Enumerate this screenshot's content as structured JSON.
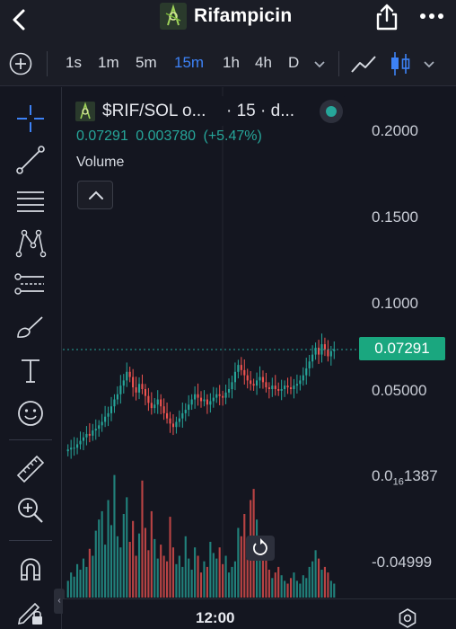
{
  "header": {
    "title": "Rifampicin",
    "back_icon": "chevron-left-icon",
    "share_icon": "share-icon",
    "more_icon": "more-dots-icon"
  },
  "toolbar": {
    "add_icon": "plus-circle-icon",
    "intervals": [
      "1s",
      "1m",
      "5m",
      "15m",
      "1h",
      "4h",
      "D"
    ],
    "active_interval": "15m",
    "line_chart_icon": "line-chart-icon",
    "candle_icon": "candlestick-icon",
    "dropdown_icon": "chevron-down-icon"
  },
  "sidebar": {
    "tools": [
      "crosshair-icon",
      "trend-line-icon",
      "horizontal-lines-icon",
      "pattern-icon",
      "parallel-channel-icon",
      "brush-icon",
      "text-icon",
      "emoji-icon",
      "ruler-icon",
      "zoom-in-icon",
      "magnet-icon",
      "lock-drawing-icon"
    ],
    "collapse_label": "‹"
  },
  "legend": {
    "symbol": "$RIF/SOL o...",
    "interval": "· 15 · d...",
    "price": "0.07291",
    "change": "0.003780",
    "change_pct": "(+5.47%)",
    "volume_label": "Volume"
  },
  "price_scale": {
    "labels": [
      "0.2000",
      "0.1500",
      "0.1000",
      "0.05000",
      "0.0",
      "16",
      "1387",
      "-0.04999"
    ],
    "current_price": "0.07291"
  },
  "time_axis": {
    "label": "12:00"
  },
  "colors": {
    "up": "#26a69a",
    "down": "#ef5350",
    "accent": "#3d82f6",
    "price_tag": "#1aa77f",
    "background": "#141620"
  },
  "chart_data": {
    "type": "candlestick",
    "title": "",
    "ylabel": "",
    "ylim": [
      -0.06,
      0.2
    ],
    "current_price": 0.07291,
    "series": [
      {
        "name": "price",
        "close": [
          0.015,
          0.016,
          0.016,
          0.018,
          0.02,
          0.022,
          0.024,
          0.023,
          0.026,
          0.027,
          0.029,
          0.031,
          0.034,
          0.036,
          0.04,
          0.044,
          0.047,
          0.052,
          0.055,
          0.06,
          0.057,
          0.051,
          0.048,
          0.053,
          0.05,
          0.046,
          0.042,
          0.039,
          0.041,
          0.044,
          0.04,
          0.036,
          0.033,
          0.03,
          0.028,
          0.031,
          0.033,
          0.036,
          0.038,
          0.041,
          0.044,
          0.047,
          0.045,
          0.043,
          0.044,
          0.041,
          0.043,
          0.045,
          0.047,
          0.046,
          0.045,
          0.048,
          0.05,
          0.054,
          0.06,
          0.064,
          0.061,
          0.058,
          0.055,
          0.053,
          0.052,
          0.055,
          0.057,
          0.054,
          0.051,
          0.05,
          0.052,
          0.05,
          0.049,
          0.05,
          0.052,
          0.051,
          0.05,
          0.052,
          0.053,
          0.055,
          0.058,
          0.062,
          0.066,
          0.07,
          0.074,
          0.07,
          0.076,
          0.073,
          0.069,
          0.072,
          0.073
        ]
      }
    ],
    "volume": [
      12,
      18,
      15,
      24,
      20,
      28,
      22,
      35,
      30,
      48,
      56,
      62,
      38,
      70,
      52,
      88,
      44,
      36,
      60,
      72,
      40,
      55,
      30,
      46,
      84,
      50,
      34,
      62,
      42,
      28,
      38,
      30,
      26,
      58,
      36,
      24,
      30,
      22,
      44,
      28,
      20,
      36,
      30,
      18,
      26,
      22,
      40,
      32,
      28,
      36,
      24,
      30,
      18,
      22,
      26,
      50,
      44,
      60,
      38,
      70,
      78,
      56,
      42,
      34,
      28,
      20,
      14,
      18,
      22,
      16,
      12,
      10,
      14,
      18,
      12,
      10,
      16,
      14,
      22,
      26,
      34,
      28,
      20,
      22,
      18,
      12,
      10
    ]
  }
}
